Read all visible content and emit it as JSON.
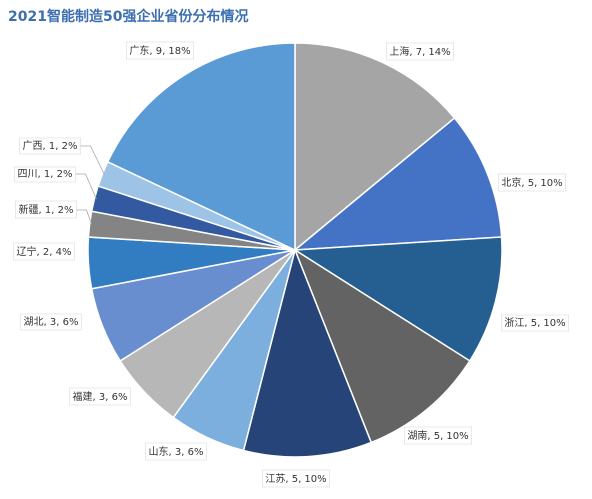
{
  "chart_data": {
    "type": "pie",
    "title": "2021智能制造50强企业省份分布情况",
    "slices": [
      {
        "name": "上海",
        "value": 7,
        "percent": "14%",
        "color": "#a5a5a5"
      },
      {
        "name": "北京",
        "value": 5,
        "percent": "10%",
        "color": "#4472c4"
      },
      {
        "name": "浙江",
        "value": 5,
        "percent": "10%",
        "color": "#255e91"
      },
      {
        "name": "湖南",
        "value": 5,
        "percent": "10%",
        "color": "#636363"
      },
      {
        "name": "江苏",
        "value": 5,
        "percent": "10%",
        "color": "#264478"
      },
      {
        "name": "山东",
        "value": 3,
        "percent": "6%",
        "color": "#7cafdd"
      },
      {
        "name": "福建",
        "value": 3,
        "percent": "6%",
        "color": "#b7b7b7"
      },
      {
        "name": "湖北",
        "value": 3,
        "percent": "6%",
        "color": "#698ed0"
      },
      {
        "name": "辽宁",
        "value": 2,
        "percent": "4%",
        "color": "#327dc2"
      },
      {
        "name": "新疆",
        "value": 1,
        "percent": "2%",
        "color": "#848484"
      },
      {
        "name": "四川",
        "value": 1,
        "percent": "2%",
        "color": "#335aa1"
      },
      {
        "name": "广西",
        "value": 1,
        "percent": "2%",
        "color": "#9dc3e6"
      },
      {
        "name": "广东",
        "value": 9,
        "percent": "18%",
        "color": "#5b9bd5"
      }
    ]
  }
}
